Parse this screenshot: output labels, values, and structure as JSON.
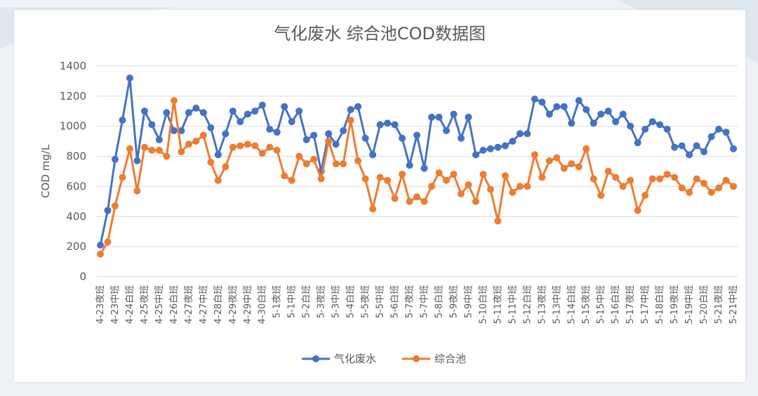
{
  "chart_data": {
    "type": "line",
    "title": "气化废水  综合池COD数据图",
    "xlabel": "",
    "ylabel": "COD mg/L",
    "ylim": [
      0,
      1400
    ],
    "yticks": [
      0,
      200,
      400,
      600,
      800,
      1000,
      1200,
      1400
    ],
    "grid": true,
    "legend_position": "bottom",
    "tick_labels": [
      "4-23夜班",
      "4-23中班",
      "4-24白班",
      "4-25夜班",
      "4-25中班",
      "4-26白班",
      "4-27夜班",
      "4-27中班",
      "4-28白班",
      "4-29夜班",
      "4-29中班",
      "4-30白班",
      "5-1夜班",
      "5-1中班",
      "5-2白班",
      "5-3夜班",
      "5-3中班",
      "5-4白班",
      "5-5夜班",
      "5-5中班",
      "5-6白班",
      "5-7夜班",
      "5-7中班",
      "5-8白班",
      "5-9夜班",
      "5-9中班",
      "5-10白班",
      "5-11夜班",
      "5-11中班",
      "5-12白班",
      "5-13夜班",
      "5-13中班",
      "5-14白班",
      "5-15夜班",
      "5-15中班",
      "5-16白班",
      "5-17夜班",
      "5-17中班",
      "5-18白班",
      "5-19夜班",
      "5-19中班",
      "5-20白班",
      "5-21夜班",
      "5-21中班"
    ],
    "series": [
      {
        "name": "气化废水",
        "color": "#4472C4",
        "values": [
          210,
          440,
          780,
          1040,
          1320,
          770,
          1100,
          1010,
          910,
          1090,
          970,
          970,
          1090,
          1120,
          1090,
          990,
          810,
          950,
          1100,
          1030,
          1080,
          1100,
          1140,
          980,
          960,
          1130,
          1030,
          1100,
          910,
          940,
          700,
          950,
          880,
          970,
          1110,
          1130,
          920,
          810,
          1010,
          1020,
          1010,
          920,
          740,
          940,
          720,
          1060,
          1060,
          970,
          1080,
          920,
          1060,
          810,
          840,
          850,
          860,
          870,
          900,
          950,
          950,
          1180,
          1160,
          1080,
          1130,
          1130,
          1020,
          1170,
          1110,
          1020,
          1080,
          1100,
          1030,
          1080,
          1000,
          890,
          980,
          1030,
          1010,
          980,
          860,
          870,
          810,
          870,
          830,
          930,
          980,
          960,
          850
        ]
      },
      {
        "name": "综合池",
        "color": "#ED7D31",
        "values": [
          150,
          230,
          470,
          660,
          850,
          570,
          860,
          840,
          840,
          800,
          1170,
          830,
          880,
          900,
          940,
          760,
          640,
          730,
          860,
          870,
          880,
          870,
          820,
          860,
          840,
          670,
          640,
          800,
          750,
          780,
          650,
          900,
          750,
          750,
          1040,
          770,
          650,
          450,
          660,
          640,
          520,
          680,
          500,
          530,
          500,
          600,
          690,
          640,
          680,
          550,
          610,
          500,
          680,
          580,
          370,
          670,
          560,
          600,
          600,
          810,
          660,
          770,
          790,
          720,
          750,
          730,
          850,
          650,
          540,
          700,
          660,
          600,
          640,
          440,
          540,
          650,
          650,
          680,
          660,
          590,
          560,
          650,
          620,
          560,
          590,
          640,
          600
        ]
      }
    ]
  }
}
